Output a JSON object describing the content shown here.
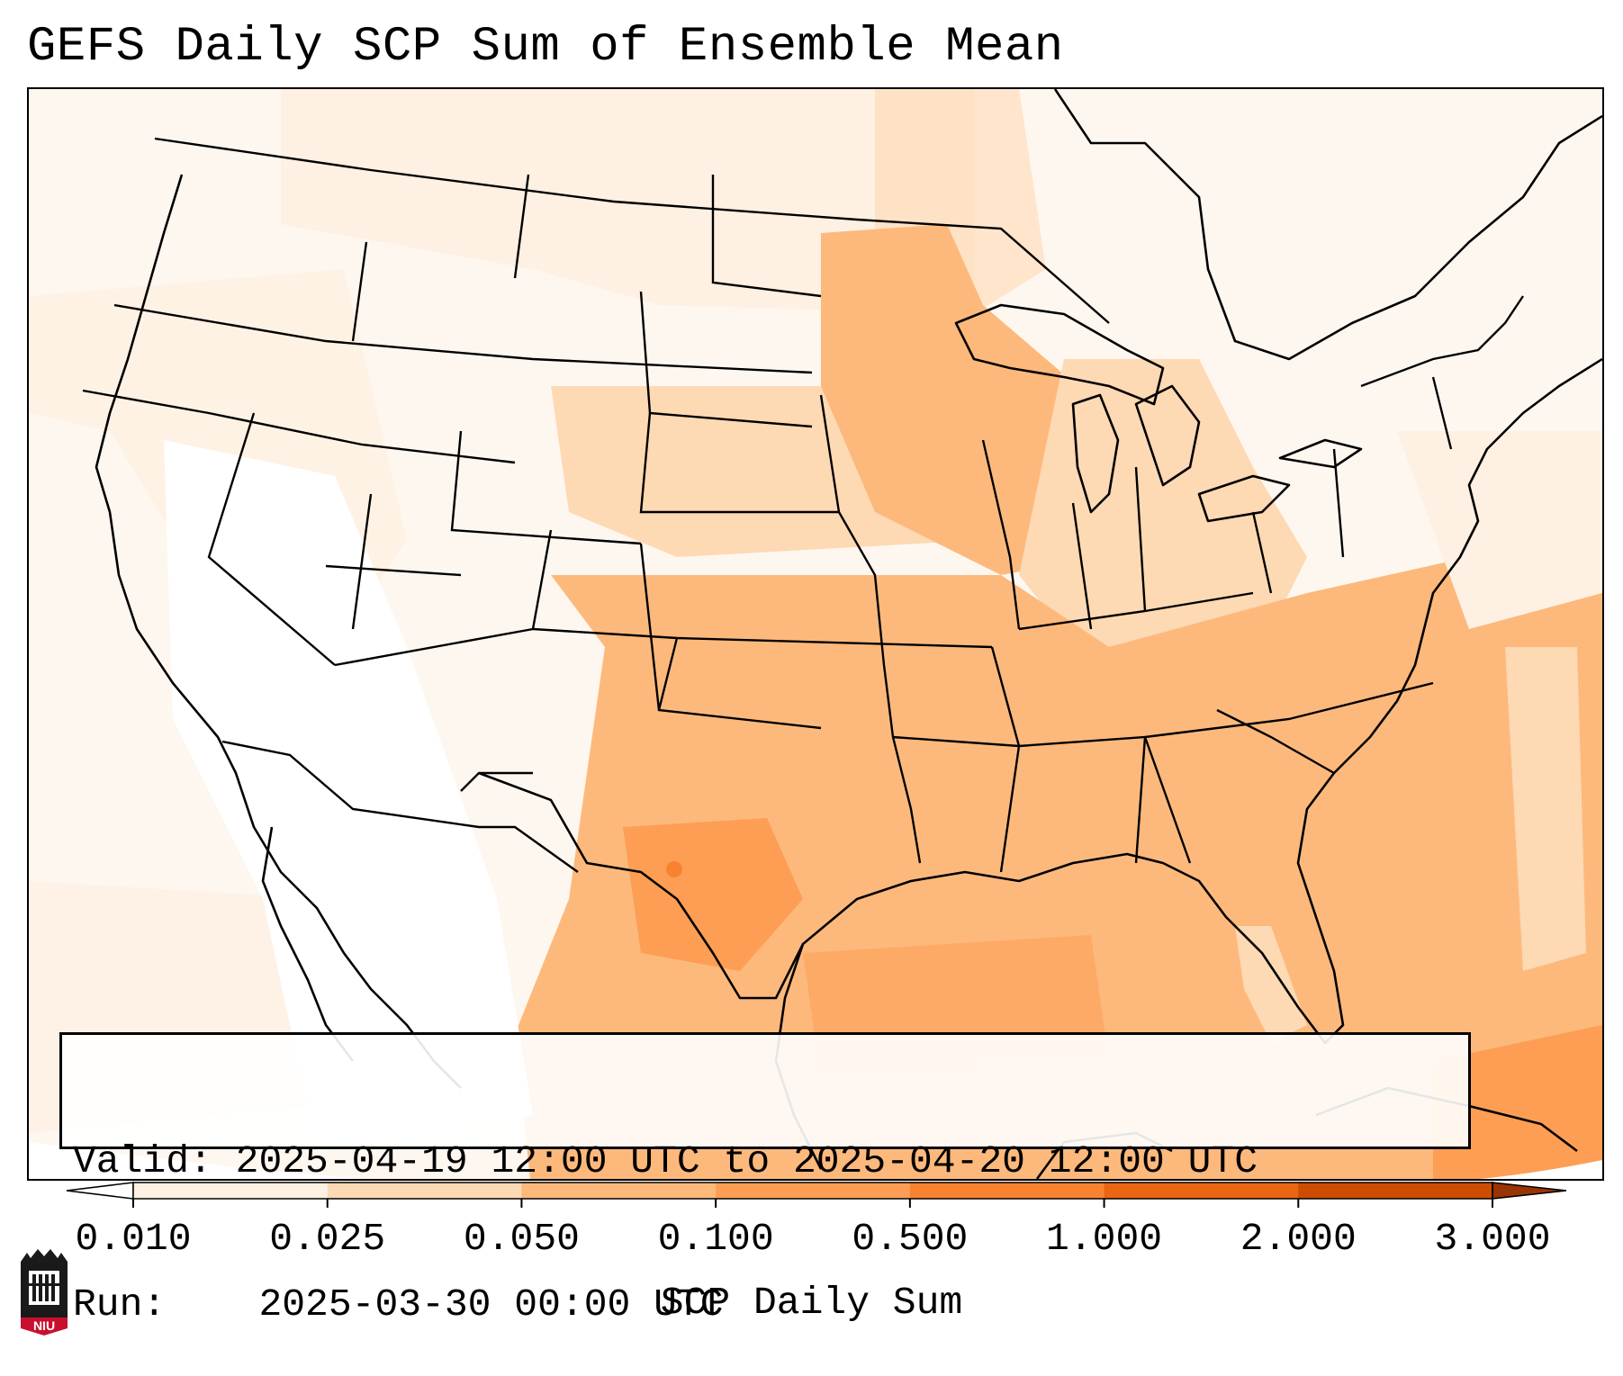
{
  "title": "GEFS Daily SCP Sum of Ensemble Mean",
  "info": {
    "valid_label": "Valid:",
    "valid_value": "2025-04-19 12:00 UTC to 2025-04-20 12:00 UTC",
    "run_label": "Run:",
    "run_value": "2025-03-30 00:00 UTC"
  },
  "colorbar": {
    "label": "SCP Daily Sum",
    "ticks": [
      "0.010",
      "0.025",
      "0.050",
      "0.100",
      "0.500",
      "1.000",
      "2.000",
      "3.000"
    ],
    "colors": [
      "#fef0e2",
      "#fdd9b4",
      "#fdb97c",
      "#fd9e54",
      "#f98230",
      "#ea6612",
      "#cc4c02"
    ],
    "under_color": "#ffffff",
    "over_color": "#993404"
  },
  "logo": {
    "text": "NIU",
    "icon": "niu-castle-icon",
    "color": "#c8102e"
  },
  "map": {
    "extent": "Contiguous United States, southern Canada, northern Mexico, Gulf of Mexico, western Atlantic",
    "field": "SCP daily sum, ensemble mean"
  }
}
